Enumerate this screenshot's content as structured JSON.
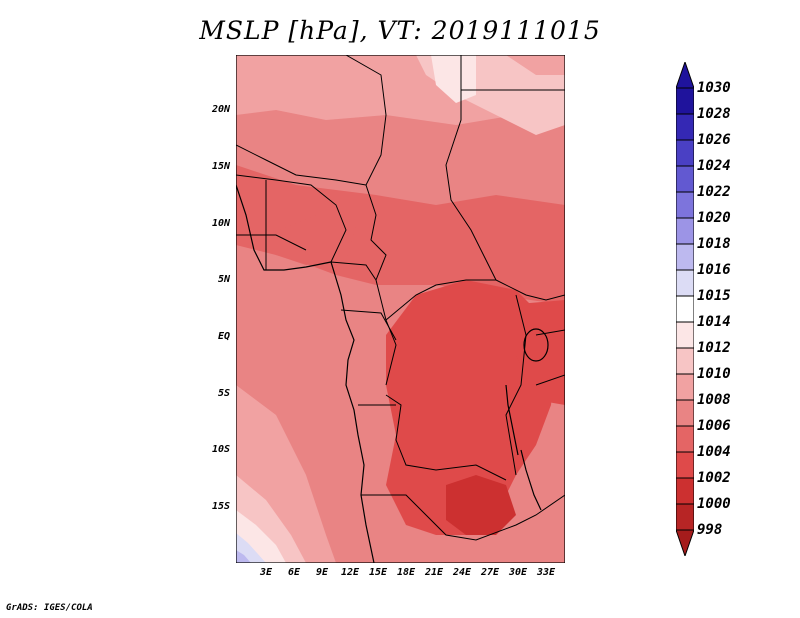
{
  "title": "MSLP [hPa], VT: 2019111015",
  "footer": "GrADS: IGES/COLA",
  "map": {
    "region": "Central Africa",
    "lat_labels": [
      "20N",
      "15N",
      "10N",
      "5N",
      "EQ",
      "5S",
      "10S",
      "15S"
    ],
    "lon_labels": [
      "3E",
      "6E",
      "9E",
      "12E",
      "15E",
      "18E",
      "21E",
      "24E",
      "27E",
      "30E",
      "33E"
    ],
    "field": "Mean sea level pressure",
    "units": "hPa"
  },
  "colorbar": {
    "levels": [
      "998",
      "1000",
      "1002",
      "1004",
      "1006",
      "1008",
      "1010",
      "1012",
      "1014",
      "1015",
      "1016",
      "1018",
      "1020",
      "1022",
      "1024",
      "1026",
      "1028",
      "1030"
    ],
    "colors": {
      "c998": "#a51c1c",
      "c1000": "#b72525",
      "c1002": "#cc3030",
      "c1004": "#df4a4a",
      "c1006": "#e46565",
      "c1008": "#e98484",
      "c1010": "#f1a2a2",
      "c1012": "#f7c5c5",
      "c1014": "#fce6e6",
      "c1015": "#ffffff",
      "c1016": "#dcdcf5",
      "c1018": "#bdb9ef",
      "c1020": "#9c94e6",
      "c1022": "#7d74dc",
      "c1024": "#6259d1",
      "c1026": "#4a40c4",
      "c1028": "#3428b4",
      "c1030": "#1f139c"
    }
  }
}
